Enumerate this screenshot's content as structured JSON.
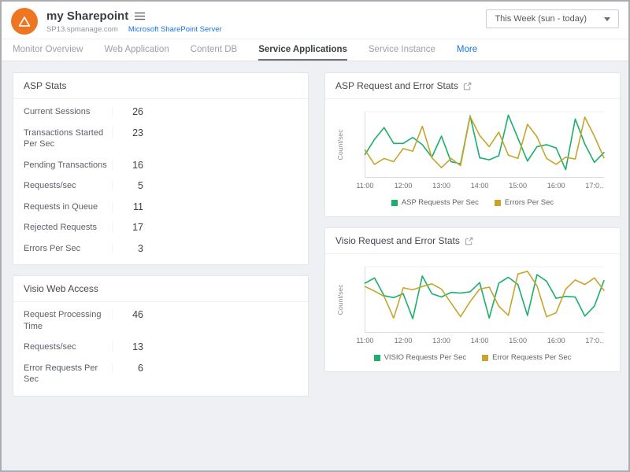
{
  "header": {
    "title": "my Sharepoint",
    "host": "SP13.spmanage.com",
    "server_link": "Microsoft SharePoint Server",
    "time_range": "This Week (sun - today)"
  },
  "colors": {
    "brand_orange": "#ee7623",
    "link_blue": "#1a73e8",
    "chart_green": "#1cb06c",
    "chart_gold": "#c7a62e",
    "background": "#eef0f4"
  },
  "tabs": [
    {
      "label": "Monitor Overview",
      "style": "default"
    },
    {
      "label": "Web Application",
      "style": "default"
    },
    {
      "label": "Content DB",
      "style": "default"
    },
    {
      "label": "Service Applications",
      "style": "active"
    },
    {
      "label": "Service Instance",
      "style": "default"
    },
    {
      "label": "More",
      "style": "accent"
    }
  ],
  "panels": {
    "asp_stats": {
      "title": "ASP Stats",
      "rows": [
        {
          "label": "Current Sessions",
          "value": "26"
        },
        {
          "label": "Transactions Started Per Sec",
          "value": "23"
        },
        {
          "label": "Pending Transactions",
          "value": "16"
        },
        {
          "label": "Requests/sec",
          "value": "5"
        },
        {
          "label": "Requests in Queue",
          "value": "11"
        },
        {
          "label": "Rejected Requests",
          "value": "17"
        },
        {
          "label": "Errors Per Sec",
          "value": "3"
        }
      ]
    },
    "visio_web_access": {
      "title": "Visio Web Access",
      "rows": [
        {
          "label": "Request Processing Time",
          "value": "46"
        },
        {
          "label": "Requests/sec",
          "value": "13"
        },
        {
          "label": "Error Requests Per Sec",
          "value": "6"
        }
      ]
    }
  },
  "chart_data": [
    {
      "type": "line",
      "title": "ASP Request and Error Stats",
      "ylabel": "Count/sec",
      "ylim": [
        0,
        10
      ],
      "grid": false,
      "legend_position": "bottom",
      "x": [
        "11:00",
        "11:15",
        "11:30",
        "11:45",
        "12:00",
        "12:15",
        "12:30",
        "12:45",
        "13:00",
        "13:15",
        "13:30",
        "13:45",
        "14:00",
        "14:15",
        "14:30",
        "14:45",
        "15:00",
        "15:15",
        "15:30",
        "15:45",
        "16:00",
        "16:15",
        "16:30",
        "16:45",
        "17:00",
        "17:15"
      ],
      "x_tick_labels": [
        "11:00",
        "12:00",
        "13:00",
        "14:00",
        "15:00",
        "16:00",
        "17:0.."
      ],
      "series": [
        {
          "name": "ASP Requests Per Sec",
          "color": "#1cb06c",
          "values": [
            3.5,
            5.8,
            7.6,
            5.2,
            5.2,
            6.1,
            5.0,
            3.1,
            6.3,
            2.4,
            2.1,
            9.4,
            3.0,
            2.7,
            3.3,
            9.5,
            6.0,
            2.5,
            4.7,
            5.0,
            4.5,
            1.2,
            8.9,
            5.1,
            2.3,
            3.8
          ]
        },
        {
          "name": "Errors Per Sec",
          "color": "#c7a62e",
          "values": [
            4.2,
            2.0,
            2.9,
            2.4,
            4.4,
            4.0,
            7.8,
            3.0,
            1.5,
            2.9,
            1.8,
            9.3,
            6.4,
            4.7,
            6.9,
            3.4,
            2.9,
            8.1,
            6.2,
            2.9,
            2.0,
            3.1,
            2.8,
            9.2,
            6.3,
            3.0
          ]
        }
      ]
    },
    {
      "type": "line",
      "title": "Visio Request and Error Stats",
      "ylabel": "Count/sec",
      "ylim": [
        0,
        10
      ],
      "grid": false,
      "legend_position": "bottom",
      "x": [
        "11:00",
        "11:15",
        "11:30",
        "11:45",
        "12:00",
        "12:15",
        "12:30",
        "12:45",
        "13:00",
        "13:15",
        "13:30",
        "13:45",
        "14:00",
        "14:15",
        "14:30",
        "14:45",
        "15:00",
        "15:15",
        "15:30",
        "15:45",
        "16:00",
        "16:15",
        "16:30",
        "16:45",
        "17:00",
        "17:15"
      ],
      "x_tick_labels": [
        "11:00",
        "12:00",
        "13:00",
        "14:00",
        "15:00",
        "16:00",
        "17:0.."
      ],
      "series": [
        {
          "name": "VISIO Requests Per Sec",
          "color": "#1cb06c",
          "values": [
            7.5,
            8.3,
            5.6,
            5.3,
            5.9,
            2.1,
            8.6,
            5.9,
            5.4,
            6.1,
            6.0,
            6.2,
            7.6,
            2.2,
            7.5,
            8.4,
            7.3,
            2.6,
            8.8,
            7.8,
            5.2,
            5.5,
            5.4,
            2.5,
            4.0,
            7.9
          ]
        },
        {
          "name": "Error Requests Per Sec",
          "color": "#c7a62e",
          "values": [
            7.0,
            6.3,
            5.5,
            2.2,
            6.8,
            6.5,
            7.0,
            7.4,
            6.6,
            4.5,
            2.4,
            4.7,
            6.6,
            6.9,
            4.0,
            2.6,
            8.9,
            9.3,
            7.1,
            2.4,
            3.0,
            6.6,
            8.0,
            7.3,
            8.3,
            6.4
          ]
        }
      ]
    }
  ]
}
